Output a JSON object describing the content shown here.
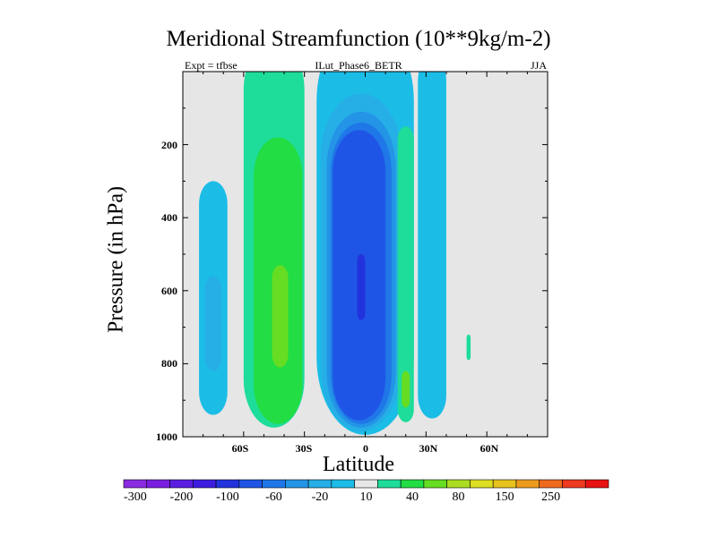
{
  "chart_data": {
    "type": "contour",
    "title": "Meridional Streamfunction (10**9kg/m-2)",
    "subtitle_left": "Expt = tfbse",
    "subtitle_center": "ILut_Phase6_BETR",
    "subtitle_right": "JJA",
    "xlabel": "Latitude",
    "ylabel": "Pressure (in hPa)",
    "xlim": [
      -90,
      90
    ],
    "ylim": [
      0,
      1000
    ],
    "y_reversed": true,
    "xticks": [
      {
        "value": -60,
        "label": "60S"
      },
      {
        "value": -30,
        "label": "30S"
      },
      {
        "value": 0,
        "label": "0"
      },
      {
        "value": 30,
        "label": "30N"
      },
      {
        "value": 60,
        "label": "60N"
      }
    ],
    "yticks": [
      {
        "value": 200,
        "label": "200"
      },
      {
        "value": 400,
        "label": "400"
      },
      {
        "value": 600,
        "label": "600"
      },
      {
        "value": 800,
        "label": "800"
      },
      {
        "value": 1000,
        "label": "1000"
      }
    ],
    "colorbar": {
      "levels": [
        {
          "from": null,
          "to": -300,
          "color": "#8a2be2"
        },
        {
          "from": -300,
          "to": -250,
          "color": "#7a1fe0"
        },
        {
          "from": -250,
          "to": -200,
          "color": "#5a1ee0"
        },
        {
          "from": -200,
          "to": -150,
          "color": "#3d1ee0"
        },
        {
          "from": -150,
          "to": -100,
          "color": "#2233dd"
        },
        {
          "from": -100,
          "to": -80,
          "color": "#1f55e6"
        },
        {
          "from": -80,
          "to": -60,
          "color": "#1f77e8"
        },
        {
          "from": -60,
          "to": -40,
          "color": "#2394e6"
        },
        {
          "from": -40,
          "to": -20,
          "color": "#26aee6"
        },
        {
          "from": -20,
          "to": -10,
          "color": "#1bbde6"
        },
        {
          "from": -10,
          "to": 10,
          "color": "#e6e6e6"
        },
        {
          "from": 10,
          "to": 20,
          "color": "#1edc9a"
        },
        {
          "from": 20,
          "to": 40,
          "color": "#22dd44"
        },
        {
          "from": 40,
          "to": 60,
          "color": "#66dd22"
        },
        {
          "from": 60,
          "to": 80,
          "color": "#aadd22"
        },
        {
          "from": 80,
          "to": 100,
          "color": "#dddd22"
        },
        {
          "from": 100,
          "to": 150,
          "color": "#e8c21e"
        },
        {
          "from": 150,
          "to": 200,
          "color": "#ec9a1e"
        },
        {
          "from": 200,
          "to": 250,
          "color": "#ee6a1e"
        },
        {
          "from": 250,
          "to": 300,
          "color": "#ee3a1e"
        },
        {
          "from": 300,
          "to": null,
          "color": "#e81212"
        }
      ],
      "labels": [
        {
          "value": -300,
          "label": "-300"
        },
        {
          "value": -200,
          "label": "-200"
        },
        {
          "value": -100,
          "label": "-100"
        },
        {
          "value": -60,
          "label": "-60"
        },
        {
          "value": -20,
          "label": "-20"
        },
        {
          "value": 10,
          "label": "10"
        },
        {
          "value": 40,
          "label": "40"
        },
        {
          "value": 80,
          "label": "80"
        },
        {
          "value": 150,
          "label": "150"
        },
        {
          "value": 250,
          "label": "250"
        }
      ]
    },
    "cells": [
      {
        "name": "south-polar-cell",
        "value": -15,
        "lat_center": -75,
        "lat_halfwidth": 7,
        "p_top": 300,
        "p_bottom": 940
      },
      {
        "name": "south-polar-cell-core",
        "value": -35,
        "lat_center": -75,
        "lat_halfwidth": 4,
        "p_top": 560,
        "p_bottom": 820
      },
      {
        "name": "south-ferrel-cell-outer",
        "value": 15,
        "lat_center": -45,
        "lat_halfwidth": 15,
        "p_top": 0,
        "p_bottom": 975
      },
      {
        "name": "south-ferrel-cell",
        "value": 30,
        "lat_center": -43,
        "lat_halfwidth": 12,
        "p_top": 180,
        "p_bottom": 965
      },
      {
        "name": "south-ferrel-cell-core",
        "value": 50,
        "lat_center": -42,
        "lat_halfwidth": 4,
        "p_top": 530,
        "p_bottom": 810
      },
      {
        "name": "hadley-cell-outer",
        "value": -15,
        "lat_center": 0,
        "lat_halfwidth": 24,
        "p_top": 0,
        "p_bottom": 995
      },
      {
        "name": "hadley-cell-l2",
        "value": -30,
        "lat_center": -2,
        "lat_halfwidth": 20,
        "p_top": 60,
        "p_bottom": 985
      },
      {
        "name": "hadley-cell-l3",
        "value": -50,
        "lat_center": -2,
        "lat_halfwidth": 17,
        "p_top": 110,
        "p_bottom": 975
      },
      {
        "name": "hadley-cell-l4",
        "value": -70,
        "lat_center": -2,
        "lat_halfwidth": 15,
        "p_top": 140,
        "p_bottom": 965
      },
      {
        "name": "hadley-cell-l5",
        "value": -90,
        "lat_center": -3,
        "lat_halfwidth": 13,
        "p_top": 160,
        "p_bottom": 955
      },
      {
        "name": "hadley-cell-core",
        "value": -120,
        "lat_center": -2,
        "lat_halfwidth": 2,
        "p_top": 500,
        "p_bottom": 680
      },
      {
        "name": "north-tropical-cell",
        "value": 15,
        "lat_center": 20,
        "lat_halfwidth": 4,
        "p_top": 150,
        "p_bottom": 960
      },
      {
        "name": "north-tropical-cell-core",
        "value": 50,
        "lat_center": 20,
        "lat_halfwidth": 2,
        "p_top": 820,
        "p_bottom": 920
      },
      {
        "name": "north-subtropical-cell",
        "value": -15,
        "lat_center": 33,
        "lat_halfwidth": 7,
        "p_top": 0,
        "p_bottom": 950
      },
      {
        "name": "north-ferrel-cell",
        "value": 15,
        "lat_center": 51,
        "lat_halfwidth": 1,
        "p_top": 720,
        "p_bottom": 790
      }
    ]
  }
}
